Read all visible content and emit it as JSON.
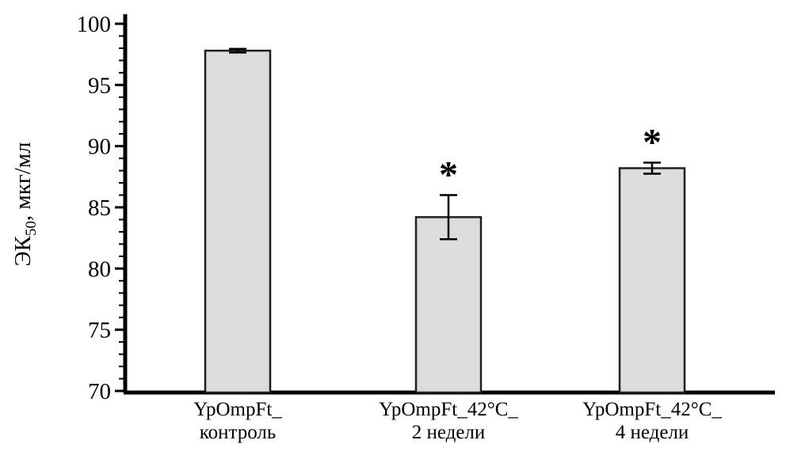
{
  "chart_data": {
    "type": "bar",
    "title": "",
    "xlabel": "",
    "ylabel": "ЭК50, мкг/мл",
    "ylabel_parts": {
      "main": "ЭК",
      "sub": "50",
      "rest": ", мкг/мл"
    },
    "categories": [
      [
        "YpOmpFt_",
        "контроль"
      ],
      [
        "YpOmpFt_42°C_",
        "2 недели"
      ],
      [
        "YpOmpFt_42°C_",
        "4 недели"
      ]
    ],
    "values": [
      97.8,
      84.2,
      88.2
    ],
    "errors": [
      0.15,
      1.8,
      0.45
    ],
    "significance": [
      "",
      "*",
      "*"
    ],
    "ylim": [
      70,
      100
    ],
    "ytick_major": 5,
    "ytick_minor": 1,
    "grid": false,
    "legend": false,
    "bar_fill": "#dcdcdc",
    "bar_stroke": "#1f1f1f",
    "axis_color": "#000000",
    "error_color": "#000000",
    "background": "#ffffff"
  }
}
